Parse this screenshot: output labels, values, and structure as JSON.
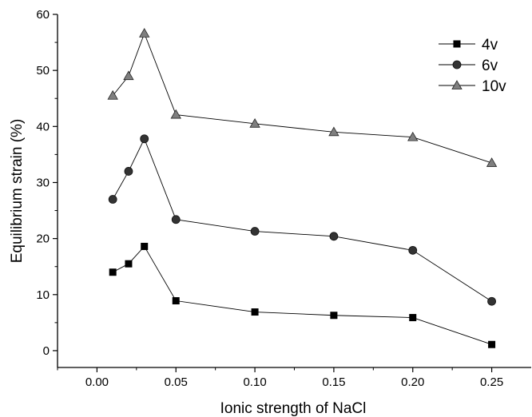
{
  "chart_data": {
    "type": "line",
    "xlabel": "Ionic strength of NaCl",
    "ylabel": "Equilibrium strain (%)",
    "xlim": [
      -0.025,
      0.275
    ],
    "ylim": [
      -3,
      60
    ],
    "xticks": [
      0.0,
      0.05,
      0.1,
      0.15,
      0.2,
      0.25
    ],
    "xtick_labels": [
      "0.00",
      "0.05",
      "0.10",
      "0.15",
      "0.20",
      "0.25"
    ],
    "yticks": [
      0,
      10,
      20,
      30,
      40,
      50,
      60
    ],
    "ytick_labels": [
      "0",
      "10",
      "20",
      "30",
      "40",
      "50",
      "60"
    ],
    "grid": false,
    "legend_position": "top-right",
    "x": [
      0.01,
      0.02,
      0.03,
      0.05,
      0.1,
      0.15,
      0.2,
      0.25
    ],
    "series": [
      {
        "name": "4v",
        "marker": "square",
        "color": "#000000",
        "values": [
          14.0,
          15.5,
          18.6,
          8.9,
          6.9,
          6.3,
          5.9,
          1.1
        ]
      },
      {
        "name": "6v",
        "marker": "circle",
        "color": "#333333",
        "values": [
          27.0,
          32.0,
          37.8,
          23.4,
          21.3,
          20.4,
          17.9,
          8.8
        ]
      },
      {
        "name": "10v",
        "marker": "triangle",
        "color": "#7f7f7f",
        "values": [
          45.5,
          49.0,
          56.6,
          42.1,
          40.5,
          39.0,
          38.1,
          33.5
        ]
      }
    ]
  }
}
